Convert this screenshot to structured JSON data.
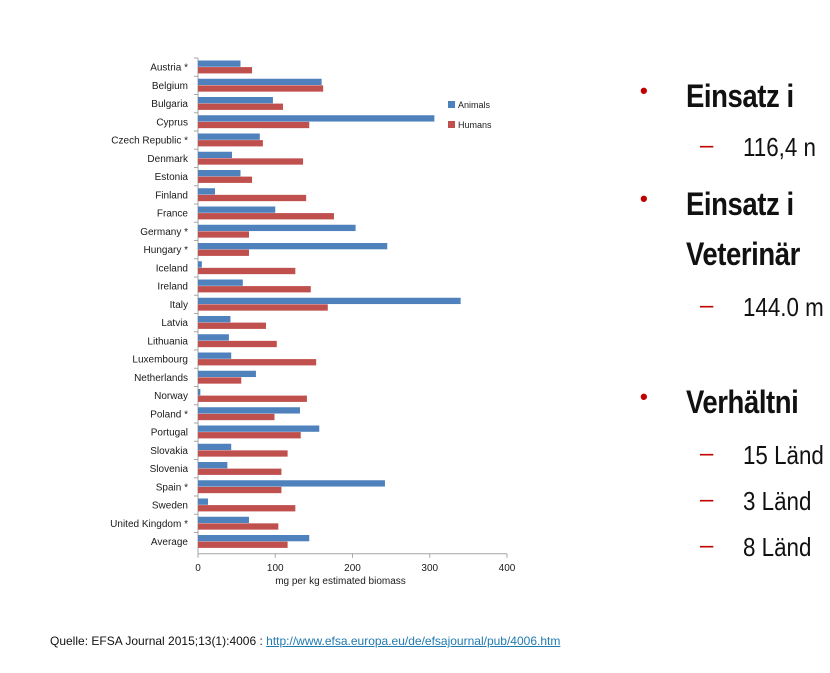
{
  "chart_data": {
    "type": "bar",
    "orientation": "horizontal",
    "categories": [
      "Austria *",
      "Belgium",
      "Bulgaria",
      "Cyprus",
      "Czech Republic *",
      "Denmark",
      "Estonia",
      "Finland",
      "France",
      "Germany *",
      "Hungary *",
      "Iceland",
      "Ireland",
      "Italy",
      "Latvia",
      "Lithuania",
      "Luxembourg",
      "Netherlands",
      "Norway",
      "Poland *",
      "Portugal",
      "Slovakia",
      "Slovenia",
      "Spain *",
      "Sweden",
      "United Kingdom *",
      "Average"
    ],
    "series": [
      {
        "name": "Animals",
        "color": "#4f81bd",
        "values": [
          55,
          160,
          97,
          306,
          80,
          44,
          55,
          22,
          100,
          204,
          245,
          5,
          58,
          340,
          42,
          40,
          43,
          75,
          3,
          132,
          157,
          43,
          38,
          242,
          13,
          66,
          144
        ]
      },
      {
        "name": "Humans",
        "color": "#c0504d",
        "values": [
          70,
          162,
          110,
          144,
          84,
          136,
          70,
          140,
          176,
          66,
          66,
          126,
          146,
          168,
          88,
          102,
          153,
          56,
          141,
          99,
          133,
          116,
          108,
          108,
          126,
          104,
          116
        ]
      }
    ],
    "xlabel": "mg per kg estimated biomass",
    "xlim": [
      0,
      400
    ],
    "xticks": [
      "0",
      "100",
      "200",
      "300",
      "400"
    ],
    "legend_position": "top-right",
    "grid": false
  },
  "bullets": [
    {
      "text": "Einsatz i"
    },
    {
      "text": "Einsatz i"
    },
    {
      "text": "Veterinär"
    },
    {
      "text": "Verhältni"
    }
  ],
  "subs": [
    {
      "dash": "–",
      "text": "116,4 n"
    },
    {
      "dash": "–",
      "text": "144.0 m"
    },
    {
      "dash": "–",
      "text": "15 Länd"
    },
    {
      "dash": "–",
      "text": " 3 Länd"
    },
    {
      "dash": "–",
      "text": " 8 Länd"
    }
  ],
  "bullet_mark": "•",
  "source": {
    "prefix": "Quelle:  EFSA Journal  2015;13(1):4006   : ",
    "link": "http://www.efsa.europa.eu/de/efsajournal/pub/4006.htm"
  }
}
